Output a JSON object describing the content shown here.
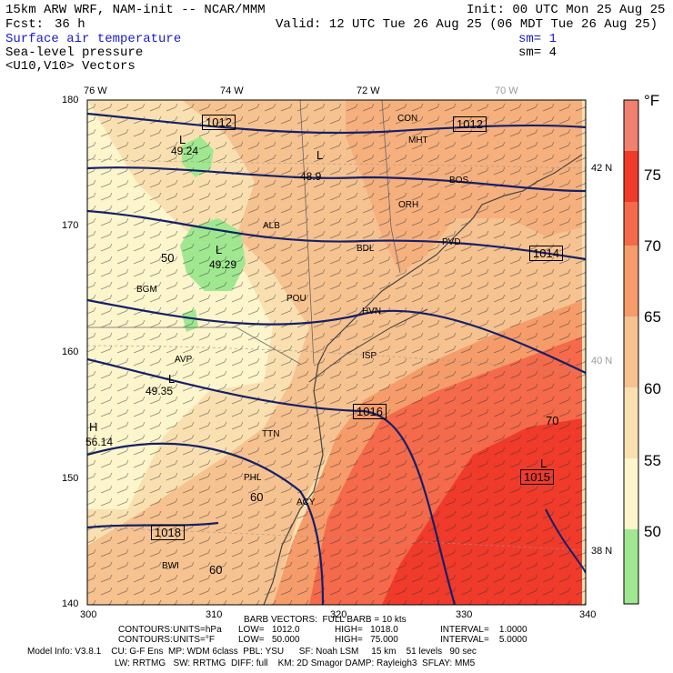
{
  "header": {
    "model_line": "15km ARW WRF, NAM-init -- NCAR/MMM",
    "init": "Init: 00 UTC Mon 25 Aug 25",
    "fcst_label": "Fcst:",
    "fcst_value": "36 h",
    "valid": "Valid: 12 UTC Tue 26 Aug 25 (06 MDT Tue 26 Aug 25)",
    "fields": [
      {
        "name": "Surface air temperature",
        "sm": "",
        "color": "#1a1acc"
      },
      {
        "name": "Sea-level pressure",
        "sm": "sm= 1",
        "color": "#000000"
      },
      {
        "name": "<U10,V10> Vectors",
        "sm": "sm= 4",
        "color": "#000000"
      }
    ]
  },
  "axes": {
    "top_lon": [
      "76 W",
      "74 W",
      "72 W",
      "70 W"
    ],
    "left": [
      "180",
      "170",
      "160",
      "150",
      "140"
    ],
    "bottom": [
      "300",
      "310",
      "320",
      "330",
      "340"
    ],
    "right_lat": [
      "42 N",
      "40 N",
      "38 N"
    ]
  },
  "colorbar": {
    "unit": "°F",
    "labels": [
      "75",
      "70",
      "65",
      "60",
      "55",
      "50"
    ],
    "colors": [
      "#f08070",
      "#f03a2a",
      "#f46a4a",
      "#f59c6a",
      "#f6c290",
      "#fae0b0",
      "#fdf5cc",
      "#fafad2",
      "#a0e890"
    ]
  },
  "map_labels": {
    "pressure": [
      {
        "text": "1012",
        "boxed": true
      },
      {
        "text": "1012",
        "boxed": true
      },
      {
        "text": "1014",
        "boxed": true
      },
      {
        "text": "1016",
        "boxed": true
      },
      {
        "text": "1015",
        "boxed": true
      },
      {
        "text": "1018",
        "boxed": true
      }
    ],
    "lows": [
      {
        "L": "L",
        "value": "49.24"
      },
      {
        "L": "L",
        "value": "48.9"
      },
      {
        "L": "L",
        "value": "49.29"
      },
      {
        "L": "L",
        "value": "49.35"
      },
      {
        "L": "L",
        "value": ""
      },
      {
        "L": "H",
        "value": "56.14"
      }
    ],
    "temps": [
      "50",
      "70",
      "60",
      "60"
    ],
    "cities": [
      "CON",
      "MHT",
      "BOS",
      "ALB",
      "ORH",
      "BDL",
      "PVD",
      "BGM",
      "POU",
      "HVN",
      "AVP",
      "ISP",
      "TTN",
      "PHL",
      "ACY",
      "BWI"
    ]
  },
  "footer": {
    "barb_vectors": "BARB VECTORS:  FULL BARB = 10 kts",
    "contours1": {
      "label": "CONTOURS:",
      "units": "UNITS=hPa",
      "low": "LOW=   1012.0",
      "high": "HIGH=   1018.0",
      "interval": "INTERVAL=    1.0000"
    },
    "contours2": {
      "label": "CONTOURS:",
      "units": "UNITS=°F",
      "low": "LOW=   50.000",
      "high": "HIGH=   75.000",
      "interval": "INTERVAL=    5.0000"
    },
    "model_info1": "Model Info: V3.8.1    CU: G-F Ens  MP: WDM 6class  PBL: YSU      SF: Noah LSM     15 km    51 levels   90 sec",
    "model_info2": "LW: RRTMG   SW: RRTMG  DIFF: full    KM: 2D Smagor DAMP: Rayleigh3  SFLAY: MM5"
  }
}
